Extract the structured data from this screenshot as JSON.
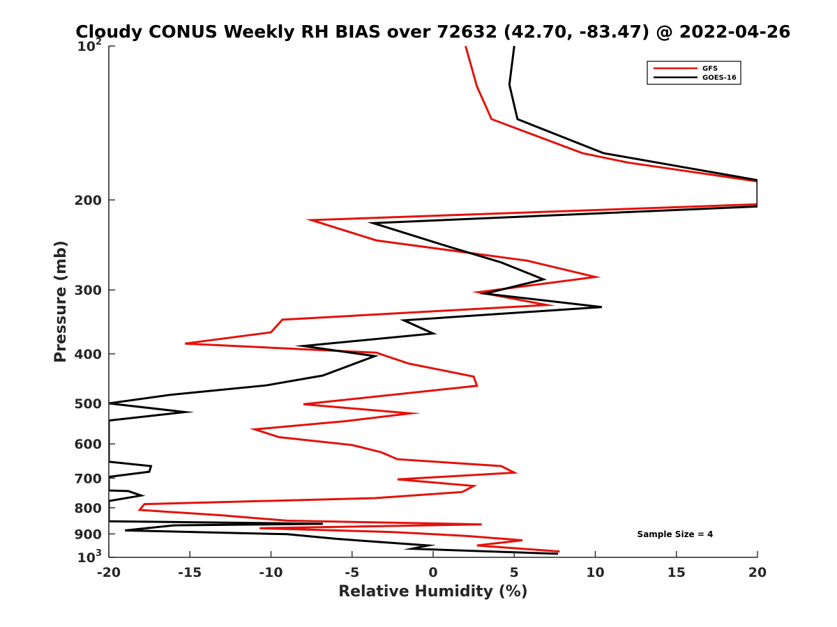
{
  "chart_data": {
    "type": "line",
    "title": "Cloudy CONUS Weekly RH BIAS over 72632 (42.70, -83.47) @ 2022-04-26",
    "xlabel": "Relative Humidity (%)",
    "ylabel": "Pressure (mb)",
    "xlim": [
      -20,
      20
    ],
    "ylim": [
      100,
      1000
    ],
    "y_scale": "log",
    "y_reversed": true,
    "grid": false,
    "legend_placement": "top-right",
    "x_ticks": [
      -20,
      -15,
      -10,
      -5,
      0,
      5,
      10,
      15,
      20
    ],
    "x_tick_labels": [
      "-20",
      "-15",
      "-10",
      "-5",
      "0",
      "5",
      "10",
      "15",
      "20"
    ],
    "y_ticks": [
      100,
      200,
      300,
      400,
      500,
      600,
      700,
      800,
      900,
      1000
    ],
    "y_tick_labels": [
      {
        "base": "10",
        "exp": "2"
      },
      {
        "base": "200",
        "exp": ""
      },
      {
        "base": "300",
        "exp": ""
      },
      {
        "base": "400",
        "exp": ""
      },
      {
        "base": "500",
        "exp": ""
      },
      {
        "base": "600",
        "exp": ""
      },
      {
        "base": "700",
        "exp": ""
      },
      {
        "base": "800",
        "exp": ""
      },
      {
        "base": "900",
        "exp": ""
      },
      {
        "base": "10",
        "exp": "3"
      }
    ],
    "annotation": "Sample Size = 4",
    "series": [
      {
        "name": "GFS",
        "color": "#e3120b",
        "points": [
          [
            2.0,
            100
          ],
          [
            2.7,
            120
          ],
          [
            3.6,
            139
          ],
          [
            9.2,
            162
          ],
          [
            12.0,
            169
          ],
          [
            20.0,
            184
          ],
          [
            20.0,
            204
          ],
          [
            -7.5,
            219
          ],
          [
            -3.5,
            240
          ],
          [
            5.8,
            263
          ],
          [
            10.0,
            283
          ],
          [
            2.8,
            303
          ],
          [
            7.0,
            321
          ],
          [
            -9.3,
            343
          ],
          [
            -10.0,
            363
          ],
          [
            -15.3,
            382
          ],
          [
            -3.5,
            398
          ],
          [
            -1.5,
            418
          ],
          [
            2.5,
            443
          ],
          [
            2.7,
            462
          ],
          [
            -8.0,
            502
          ],
          [
            -1.4,
            523
          ],
          [
            -5.5,
            542
          ],
          [
            -11.0,
            562
          ],
          [
            -9.5,
            582
          ],
          [
            -5.0,
            603
          ],
          [
            -3.2,
            623
          ],
          [
            -2.2,
            643
          ],
          [
            4.2,
            663
          ],
          [
            5.0,
            683
          ],
          [
            -2.2,
            704
          ],
          [
            2.5,
            725
          ],
          [
            1.8,
            745
          ],
          [
            -3.6,
            766
          ],
          [
            -17.8,
            787
          ],
          [
            -18.1,
            808
          ],
          [
            -13.0,
            828
          ],
          [
            -9.0,
            848
          ],
          [
            3.0,
            862
          ],
          [
            -10.7,
            877
          ],
          [
            -2.6,
            892
          ],
          [
            2.0,
            908
          ],
          [
            5.5,
            926
          ],
          [
            2.7,
            948
          ],
          [
            7.8,
            974
          ]
        ]
      },
      {
        "name": "GOES-16",
        "color": "#000000",
        "points": [
          [
            5.0,
            100
          ],
          [
            4.7,
            119
          ],
          [
            5.2,
            139
          ],
          [
            10.5,
            162
          ],
          [
            20.0,
            183
          ],
          [
            20.0,
            206
          ],
          [
            -3.7,
            222
          ],
          [
            0.8,
            246
          ],
          [
            4.2,
            265
          ],
          [
            6.8,
            286
          ],
          [
            3.2,
            305
          ],
          [
            10.4,
            324
          ],
          [
            -1.8,
            344
          ],
          [
            0.0,
            365
          ],
          [
            -8.0,
            386
          ],
          [
            -3.6,
            404
          ],
          [
            -6.8,
            441
          ],
          [
            -10.3,
            461
          ],
          [
            -16.2,
            481
          ],
          [
            -20.0,
            500
          ],
          [
            -15.3,
            520
          ],
          [
            -20.0,
            540
          ],
          [
            -20.0,
            650
          ],
          [
            -17.4,
            663
          ],
          [
            -17.5,
            680
          ],
          [
            -20.0,
            696
          ],
          [
            -20.0,
            740
          ],
          [
            -18.8,
            742
          ],
          [
            -18.0,
            757
          ],
          [
            -20.0,
            776
          ],
          [
            -20.0,
            850
          ],
          [
            -6.8,
            860
          ],
          [
            -16.0,
            866
          ],
          [
            -19.0,
            886
          ],
          [
            -9.0,
            901
          ],
          [
            -6.0,
            920
          ],
          [
            -0.3,
            948
          ],
          [
            -1.3,
            962
          ],
          [
            7.7,
            984
          ]
        ]
      }
    ]
  }
}
